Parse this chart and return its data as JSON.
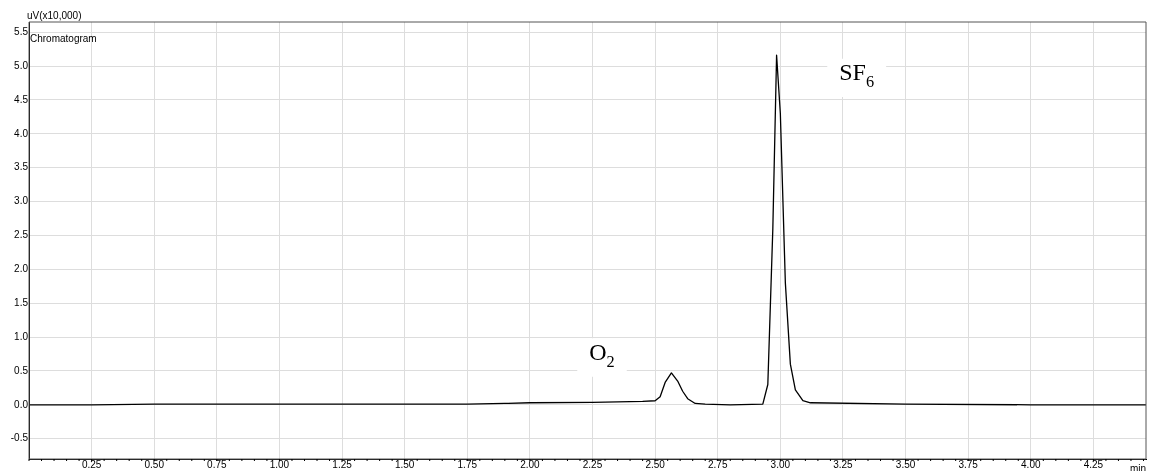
{
  "chart_data": {
    "type": "line",
    "title": "Chromatogram",
    "xlabel": "min",
    "ylabel": "uV(x10,000)",
    "x": [
      0,
      0.25,
      0.5,
      0.75,
      1.0,
      1.25,
      1.5,
      1.75,
      1.9,
      2.0,
      2.25,
      2.45,
      2.5,
      2.52,
      2.54,
      2.565,
      2.59,
      2.61,
      2.63,
      2.66,
      2.7,
      2.8,
      2.93,
      2.95,
      2.97,
      2.985,
      3.0,
      3.02,
      3.04,
      3.06,
      3.09,
      3.12,
      3.5,
      4.0,
      4.46
    ],
    "series": [
      {
        "color": "#000000",
        "values": [
          0,
          0,
          0.01,
          0.01,
          0.01,
          0.01,
          0.01,
          0.01,
          0.02,
          0.03,
          0.035,
          0.05,
          0.06,
          0.12,
          0.33,
          0.47,
          0.35,
          0.2,
          0.09,
          0.02,
          0.01,
          0,
          0.01,
          0.3,
          2.6,
          5.16,
          4.3,
          1.8,
          0.6,
          0.22,
          0.06,
          0.03,
          0.01,
          0.0,
          0.0
        ]
      }
    ],
    "xlim": [
      0,
      4.46
    ],
    "ylim": [
      -0.8,
      5.65
    ],
    "xticks": [
      {
        "value": 0.25,
        "label": "0.25"
      },
      {
        "value": 0.5,
        "label": "0.50"
      },
      {
        "value": 0.75,
        "label": "0.75"
      },
      {
        "value": 1.0,
        "label": "1.00"
      },
      {
        "value": 1.25,
        "label": "1.25"
      },
      {
        "value": 1.5,
        "label": "1.50"
      },
      {
        "value": 1.75,
        "label": "1.75"
      },
      {
        "value": 2.0,
        "label": "2.00"
      },
      {
        "value": 2.25,
        "label": "2.25"
      },
      {
        "value": 2.5,
        "label": "2.50"
      },
      {
        "value": 2.75,
        "label": "2.75"
      },
      {
        "value": 3.0,
        "label": "3.00"
      },
      {
        "value": 3.25,
        "label": "3.25"
      },
      {
        "value": 3.5,
        "label": "3.50"
      },
      {
        "value": 3.75,
        "label": "3.75"
      },
      {
        "value": 4.0,
        "label": "4.00"
      },
      {
        "value": 4.25,
        "label": "4.25"
      }
    ],
    "yticks": [
      {
        "value": -0.5,
        "label": "-0.5"
      },
      {
        "value": 0,
        "label": "0.0"
      },
      {
        "value": 0.5,
        "label": "0.5"
      },
      {
        "value": 1,
        "label": "1.0"
      },
      {
        "value": 1.5,
        "label": "1.5"
      },
      {
        "value": 2,
        "label": "2.0"
      },
      {
        "value": 2.5,
        "label": "2.5"
      },
      {
        "value": 3,
        "label": "3.0"
      },
      {
        "value": 3.5,
        "label": "3.5"
      },
      {
        "value": 4,
        "label": "4.0"
      },
      {
        "value": 4.5,
        "label": "4.5"
      },
      {
        "value": 5,
        "label": "5.0"
      },
      {
        "value": 5.5,
        "label": "5.5"
      }
    ],
    "annotations": [
      "O$_{2}$",
      "SF$_{6}$"
    ],
    "grid": true,
    "legend": false,
    "marker": "none",
    "line_style": "solid"
  }
}
